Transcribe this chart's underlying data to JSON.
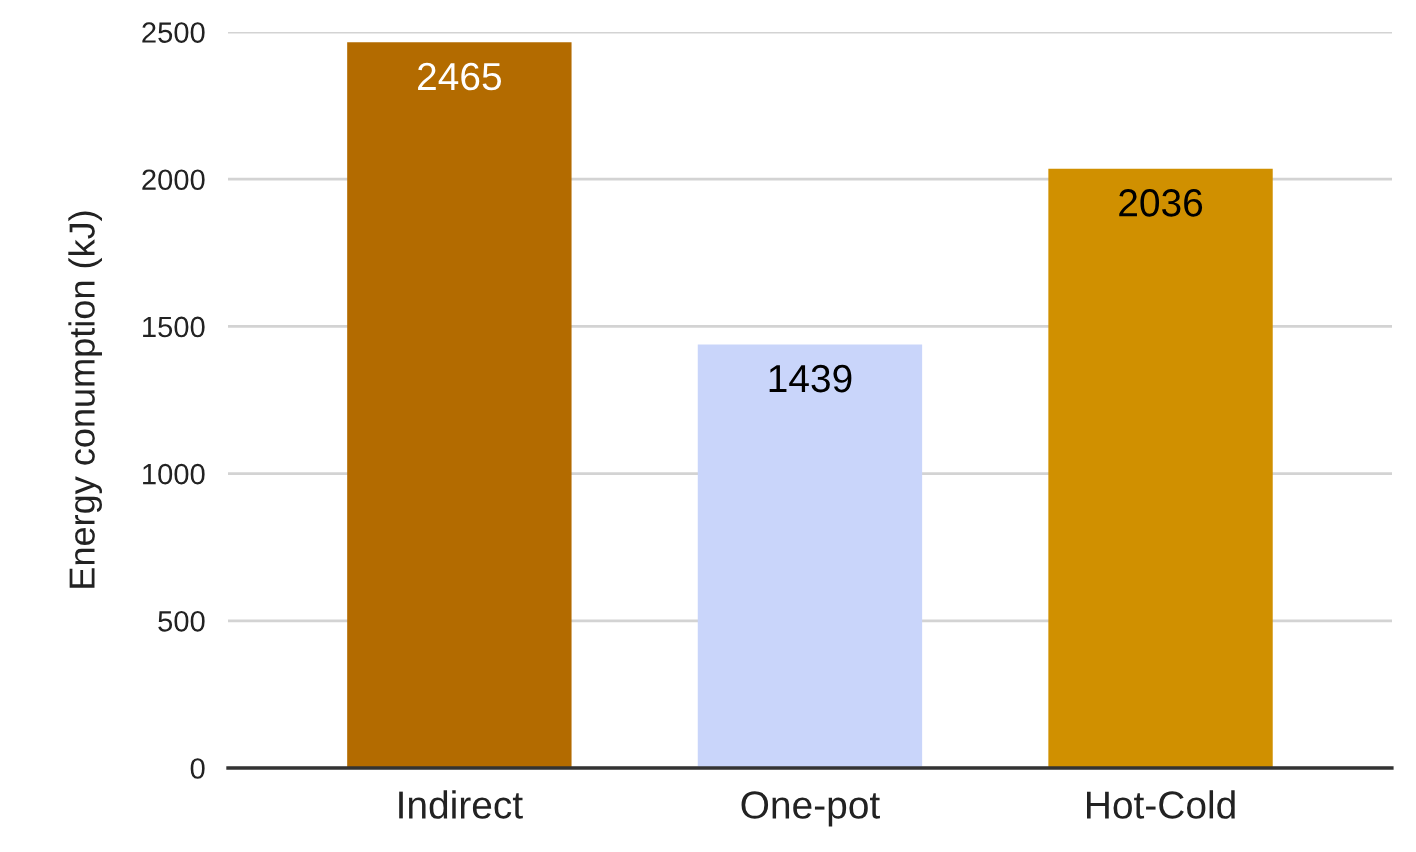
{
  "chart_data": {
    "type": "bar",
    "ylabel": "Energy conumption (kJ)",
    "categories": [
      "Indirect",
      "One-pot",
      "Hot-Cold"
    ],
    "values": [
      2465,
      1439,
      2036
    ],
    "colors": [
      "#b36b00",
      "#c9d5fa",
      "#d09000"
    ],
    "ylim": [
      0,
      2500
    ],
    "yticks": [
      0,
      500,
      1000,
      1500,
      2000,
      2500
    ],
    "grid": "y",
    "data_labels": true,
    "legend": false
  }
}
